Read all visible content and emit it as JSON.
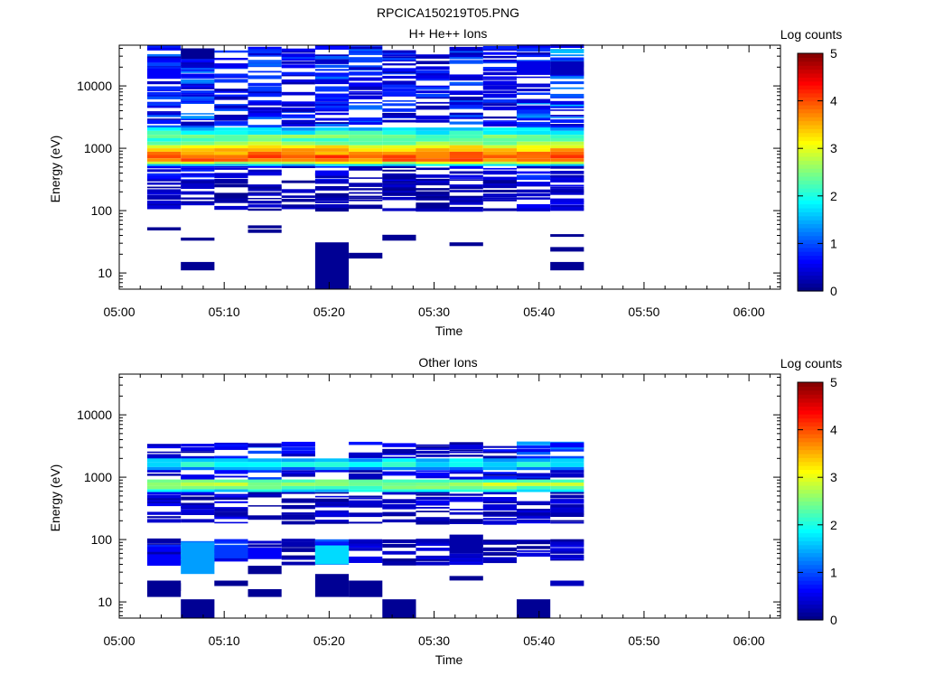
{
  "title": "RPCICA150219T05.PNG",
  "chart_data": [
    {
      "type": "heatmap",
      "title": "H+ He++ Ions",
      "xlabel": "Time",
      "ylabel": "Energy (eV)",
      "y_scale": "log",
      "ylim": [
        5.5,
        45000
      ],
      "xlim": [
        "05:00",
        "06:03"
      ],
      "x_ticks": [
        "05:00",
        "05:10",
        "05:20",
        "05:30",
        "05:40",
        "05:50",
        "06:00"
      ],
      "y_ticks": [
        10,
        100,
        1000,
        10000
      ],
      "y_tick_labels": [
        "10",
        "100",
        "1000",
        "10000"
      ],
      "colorbar": {
        "label": "Log counts",
        "range": [
          0,
          5
        ],
        "ticks": [
          "0",
          "1",
          "2",
          "3",
          "4",
          "5"
        ],
        "colormap": "jet"
      },
      "time_bins": [
        "05:02:40",
        "05:05:52",
        "05:09:04",
        "05:12:16",
        "05:15:28",
        "05:18:40",
        "05:21:52",
        "05:25:04",
        "05:28:16",
        "05:31:28",
        "05:34:40",
        "05:37:52",
        "05:41:04"
      ],
      "bin_width_minutes": 3.2,
      "bands": [
        {
          "emin": 1900,
          "emax": 2150,
          "value": 1.6
        },
        {
          "emin": 1650,
          "emax": 1900,
          "value": 2.0
        },
        {
          "emin": 1450,
          "emax": 1650,
          "value": 2.4
        },
        {
          "emin": 1280,
          "emax": 1450,
          "value": 2.2
        },
        {
          "emin": 1120,
          "emax": 1280,
          "value": 2.6
        },
        {
          "emin": 1000,
          "emax": 1120,
          "value": 3.1
        },
        {
          "emin": 880,
          "emax": 1000,
          "value": 3.4
        },
        {
          "emin": 780,
          "emax": 880,
          "value": 3.7
        },
        {
          "emin": 690,
          "emax": 780,
          "value": 3.9
        },
        {
          "emin": 610,
          "emax": 690,
          "value": 3.8
        },
        {
          "emin": 560,
          "emax": 610,
          "value": 2.9
        },
        {
          "emin": 520,
          "emax": 560,
          "value": 1.7
        }
      ],
      "sparse": [
        {
          "emin": 300,
          "emax": 520,
          "values": [
            0.5,
            0.4,
            0.4,
            0.4,
            0.3,
            0.5,
            0.4,
            0.3,
            0.4,
            0.4,
            0.3,
            0.5,
            0.4
          ]
        },
        {
          "emin": 2150,
          "emax": 45000,
          "values": [
            0.6,
            0.7,
            0.6,
            0.6,
            0.5,
            0.6,
            0.6,
            0.5,
            0.5,
            0.6,
            0.5,
            0.7,
            0.8
          ]
        },
        {
          "emin": 100,
          "emax": 300,
          "values": [
            0.3,
            0.2,
            0.2,
            0.2,
            0.2,
            0.2,
            0.2,
            0.2,
            0.2,
            0.2,
            0.2,
            0.3,
            0.3
          ]
        }
      ],
      "blocks": [
        {
          "bin": 5,
          "emin": 5.5,
          "emax": 31,
          "value": 0.1
        },
        {
          "bin": 1,
          "emin": 11,
          "emax": 15,
          "value": 0.1
        },
        {
          "bin": 12,
          "emin": 11,
          "emax": 15,
          "value": 0.1
        },
        {
          "bin": 6,
          "emin": 17,
          "emax": 21,
          "value": 0.1
        },
        {
          "bin": 12,
          "emin": 22,
          "emax": 26,
          "value": 0.1
        },
        {
          "bin": 9,
          "emin": 27,
          "emax": 31,
          "value": 0.1
        },
        {
          "bin": 7,
          "emin": 33,
          "emax": 41,
          "value": 0.1
        },
        {
          "bin": 1,
          "emin": 33,
          "emax": 37,
          "value": 0.1
        },
        {
          "bin": 12,
          "emin": 38,
          "emax": 42,
          "value": 0.1
        },
        {
          "bin": 0,
          "emin": 48,
          "emax": 54,
          "value": 0.1
        },
        {
          "bin": 3,
          "emin": 44,
          "emax": 50,
          "value": 0.1
        },
        {
          "bin": 3,
          "emin": 52,
          "emax": 58,
          "value": 0.1
        },
        {
          "bin": 0,
          "emin": 13000,
          "emax": 19000,
          "value": 0.6
        },
        {
          "bin": 1,
          "emin": 27000,
          "emax": 40000,
          "value": 0.1
        },
        {
          "bin": 11,
          "emin": 15000,
          "emax": 25000,
          "value": 0.5
        },
        {
          "bin": 12,
          "emin": 15000,
          "emax": 25000,
          "value": 0.3
        }
      ]
    },
    {
      "type": "heatmap",
      "title": "Other Ions",
      "xlabel": "Time",
      "ylabel": "Energy (eV)",
      "y_scale": "log",
      "ylim": [
        5.5,
        45000
      ],
      "xlim": [
        "05:00",
        "06:03"
      ],
      "x_ticks": [
        "05:00",
        "05:10",
        "05:20",
        "05:30",
        "05:40",
        "05:50",
        "06:00"
      ],
      "y_ticks": [
        10,
        100,
        1000,
        10000
      ],
      "y_tick_labels": [
        "10",
        "100",
        "1000",
        "10000"
      ],
      "colorbar": {
        "label": "Log counts",
        "range": [
          0,
          5
        ],
        "ticks": [
          "0",
          "1",
          "2",
          "3",
          "4",
          "5"
        ],
        "colormap": "jet"
      },
      "time_bins": [
        "05:02:40",
        "05:05:52",
        "05:09:04",
        "05:12:16",
        "05:15:28",
        "05:18:40",
        "05:21:52",
        "05:25:04",
        "05:28:16",
        "05:31:28",
        "05:34:40",
        "05:37:52",
        "05:41:04"
      ],
      "bin_width_minutes": 3.2,
      "bands": [
        {
          "emin": 1750,
          "emax": 2000,
          "value": 1.6
        },
        {
          "emin": 1450,
          "emax": 1750,
          "value": 1.9
        },
        {
          "emin": 1300,
          "emax": 1450,
          "value": 1.3
        },
        {
          "emin": 820,
          "emax": 920,
          "value": 2.3
        },
        {
          "emin": 720,
          "emax": 820,
          "value": 2.7
        },
        {
          "emin": 640,
          "emax": 720,
          "value": 2.4
        },
        {
          "emin": 580,
          "emax": 640,
          "value": 1.8
        }
      ],
      "sparse": [
        {
          "emin": 2000,
          "emax": 3600,
          "values": [
            0.4,
            0.4,
            0.5,
            0.6,
            0.4,
            0.0,
            0.4,
            0.3,
            0.3,
            0.3,
            0.4,
            0.8,
            0.9
          ]
        },
        {
          "emin": 920,
          "emax": 1300,
          "values": [
            0.4,
            0.4,
            0.4,
            0.5,
            0.4,
            0.5,
            0.4,
            0.4,
            0.4,
            0.4,
            0.4,
            0.5,
            0.5
          ]
        },
        {
          "emin": 180,
          "emax": 580,
          "values": [
            0.3,
            0.3,
            0.3,
            0.2,
            0.2,
            0.3,
            0.3,
            0.2,
            0.3,
            0.3,
            0.3,
            0.3,
            0.3
          ]
        },
        {
          "emin": 40,
          "emax": 100,
          "values": [
            0.4,
            0.7,
            0.6,
            0.3,
            0.2,
            0.8,
            0.3,
            0.2,
            0.3,
            0.3,
            0.2,
            0.3,
            0.3
          ]
        }
      ],
      "blocks": [
        {
          "bin": 0,
          "emin": 38,
          "emax": 58,
          "value": 0.6
        },
        {
          "bin": 0,
          "emin": 12,
          "emax": 20,
          "value": 0.1
        },
        {
          "bin": 0,
          "emin": 15,
          "emax": 22,
          "value": 0.1
        },
        {
          "bin": 1,
          "emin": 5.5,
          "emax": 11,
          "value": 0.1
        },
        {
          "bin": 1,
          "emin": 28,
          "emax": 90,
          "value": 1.4
        },
        {
          "bin": 2,
          "emin": 18,
          "emax": 22,
          "value": 0.1
        },
        {
          "bin": 2,
          "emin": 50,
          "emax": 80,
          "value": 0.9
        },
        {
          "bin": 3,
          "emin": 12,
          "emax": 16,
          "value": 0.1
        },
        {
          "bin": 3,
          "emin": 28,
          "emax": 38,
          "value": 0.1
        },
        {
          "bin": 3,
          "emin": 50,
          "emax": 72,
          "value": 0.6
        },
        {
          "bin": 5,
          "emin": 12,
          "emax": 28,
          "value": 0.1
        },
        {
          "bin": 5,
          "emin": 40,
          "emax": 80,
          "value": 1.7
        },
        {
          "bin": 6,
          "emin": 12,
          "emax": 22,
          "value": 0.1
        },
        {
          "bin": 7,
          "emin": 5.5,
          "emax": 11,
          "value": 0.1
        },
        {
          "bin": 9,
          "emin": 60,
          "emax": 120,
          "value": 0.2
        },
        {
          "bin": 9,
          "emin": 22,
          "emax": 26,
          "value": 0.1
        },
        {
          "bin": 11,
          "emin": 5.5,
          "emax": 11,
          "value": 0.1
        },
        {
          "bin": 12,
          "emin": 18,
          "emax": 22,
          "value": 0.3
        },
        {
          "bin": 12,
          "emin": 3000,
          "emax": 3600,
          "value": 0.6
        }
      ]
    }
  ]
}
